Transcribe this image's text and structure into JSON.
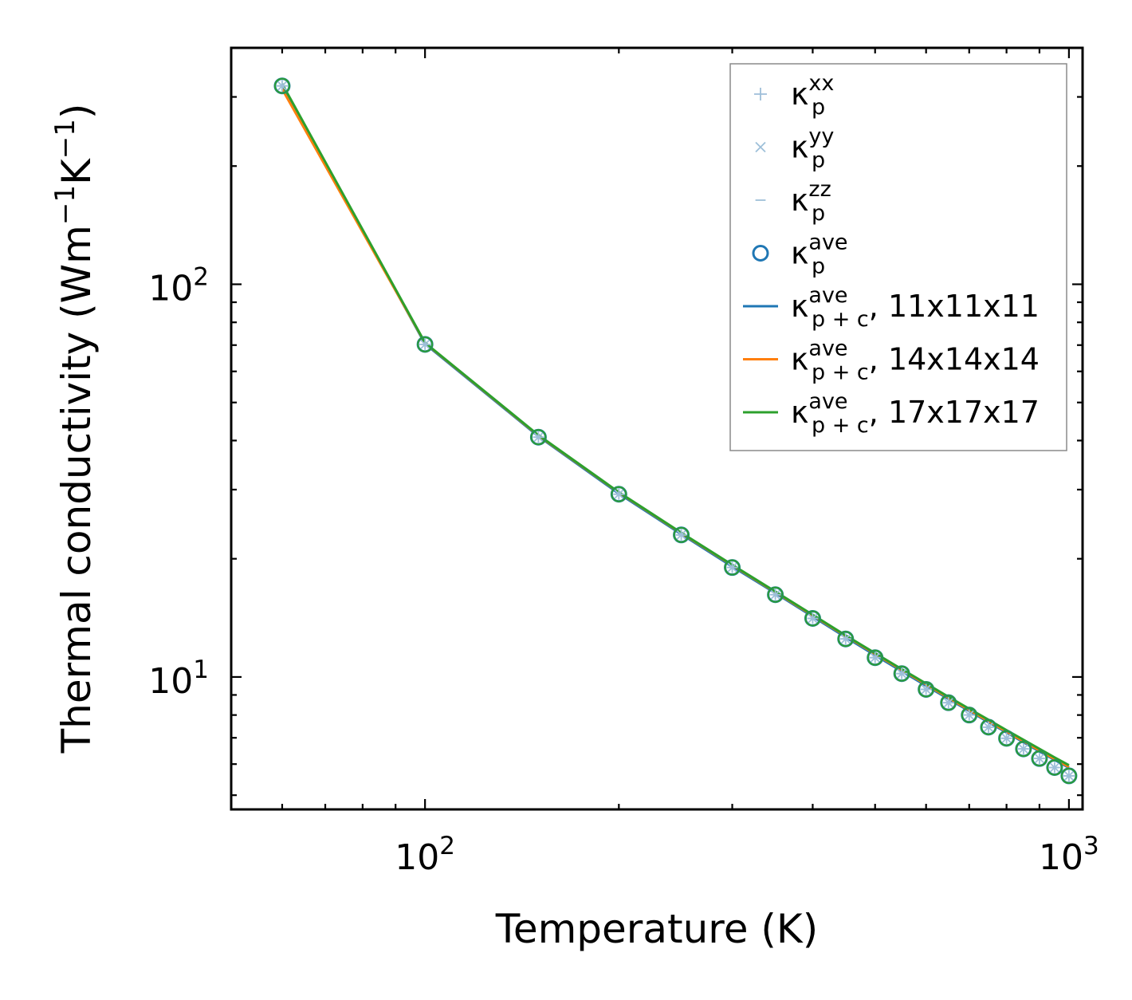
{
  "chart_data": {
    "type": "line",
    "xlabel": "Temperature (K)",
    "ylabel": {
      "main": "Thermal conductivity (Wm",
      "exp1": "−1",
      "mid": "K",
      "exp2": "−1",
      "close": ")"
    },
    "xscale": "log",
    "yscale": "log",
    "xlim": [
      50,
      1050
    ],
    "ylim": [
      4.6,
      400
    ],
    "x_major_ticks": [
      {
        "value": 100,
        "base": "10",
        "exp": "2"
      },
      {
        "value": 1000,
        "base": "10",
        "exp": "3"
      }
    ],
    "y_major_ticks": [
      {
        "value": 10,
        "base": "10",
        "exp": "1"
      },
      {
        "value": 100,
        "base": "10",
        "exp": "2"
      }
    ],
    "x": [
      60,
      100,
      150,
      200,
      250,
      300,
      350,
      400,
      450,
      500,
      550,
      600,
      650,
      700,
      750,
      800,
      850,
      900,
      950,
      1000
    ],
    "series": [
      {
        "name": "κ_p^xx",
        "kind": "marker",
        "marker": "plus",
        "color": "#9ebfd9",
        "values": [
          320,
          70.3,
          40.8,
          29.2,
          23.0,
          19.0,
          16.2,
          14.1,
          12.5,
          11.2,
          10.2,
          9.3,
          8.6,
          8.0,
          7.45,
          6.98,
          6.56,
          6.2,
          5.88,
          5.6
        ]
      },
      {
        "name": "κ_p^yy",
        "kind": "marker",
        "marker": "cross",
        "color": "#9ebfd9",
        "values": [
          320,
          70.3,
          40.8,
          29.2,
          23.0,
          19.0,
          16.2,
          14.1,
          12.5,
          11.2,
          10.2,
          9.3,
          8.6,
          8.0,
          7.45,
          6.98,
          6.56,
          6.2,
          5.88,
          5.6
        ]
      },
      {
        "name": "κ_p^zz",
        "kind": "marker",
        "marker": "dash",
        "color": "#9ebfd9",
        "values": [
          320,
          70.3,
          40.8,
          29.2,
          23.0,
          19.0,
          16.2,
          14.1,
          12.5,
          11.2,
          10.2,
          9.3,
          8.6,
          8.0,
          7.45,
          6.98,
          6.56,
          6.2,
          5.88,
          5.6
        ]
      },
      {
        "name": "κ_p^ave",
        "kind": "marker",
        "marker": "circle",
        "color": "#1f77b4",
        "values": [
          320,
          70.3,
          40.8,
          29.2,
          23.0,
          19.0,
          16.2,
          14.1,
          12.5,
          11.2,
          10.2,
          9.3,
          8.6,
          8.0,
          7.45,
          6.98,
          6.56,
          6.2,
          5.88,
          5.6
        ]
      },
      {
        "name": "κ_p+c^ave, 11x11x11",
        "kind": "line",
        "color": "#1f77b4",
        "values": [
          322,
          70.5,
          41.0,
          29.3,
          23.1,
          19.1,
          16.35,
          14.25,
          12.62,
          11.36,
          10.34,
          9.5,
          8.79,
          8.19,
          7.67,
          7.22,
          6.82,
          6.46,
          6.15,
          5.87
        ]
      },
      {
        "name": "κ_p+c^ave, 14x14x14",
        "kind": "line",
        "color": "#ff7f0e",
        "values": [
          314,
          70.9,
          41.2,
          29.5,
          23.25,
          19.25,
          16.45,
          14.35,
          12.72,
          11.45,
          10.42,
          9.57,
          8.85,
          8.24,
          7.72,
          7.26,
          6.86,
          6.5,
          6.18,
          5.9
        ]
      },
      {
        "name": "κ_p+c^ave, 17x17x17",
        "kind": "line",
        "color": "#2ca02c",
        "values": [
          324,
          71.0,
          41.3,
          29.55,
          23.3,
          19.3,
          16.5,
          14.4,
          12.76,
          11.5,
          10.47,
          9.62,
          8.9,
          8.3,
          7.78,
          7.32,
          6.92,
          6.56,
          6.24,
          5.96
        ]
      }
    ],
    "legend": {
      "position": "top-right",
      "entries": [
        {
          "symbol": "κ",
          "sub": "p",
          "sup": "xx",
          "suffix": ""
        },
        {
          "symbol": "κ",
          "sub": "p",
          "sup": "yy",
          "suffix": ""
        },
        {
          "symbol": "κ",
          "sub": "p",
          "sup": "zz",
          "suffix": ""
        },
        {
          "symbol": "κ",
          "sub": "p",
          "sup": "ave",
          "suffix": ""
        },
        {
          "symbol": "κ",
          "sub": "p + c",
          "sup": "ave",
          "suffix": ", 11x11x11"
        },
        {
          "symbol": "κ",
          "sub": "p + c",
          "sup": "ave",
          "suffix": ", 14x14x14"
        },
        {
          "symbol": "κ",
          "sub": "p + c",
          "sup": "ave",
          "suffix": ", 17x17x17"
        }
      ]
    }
  }
}
